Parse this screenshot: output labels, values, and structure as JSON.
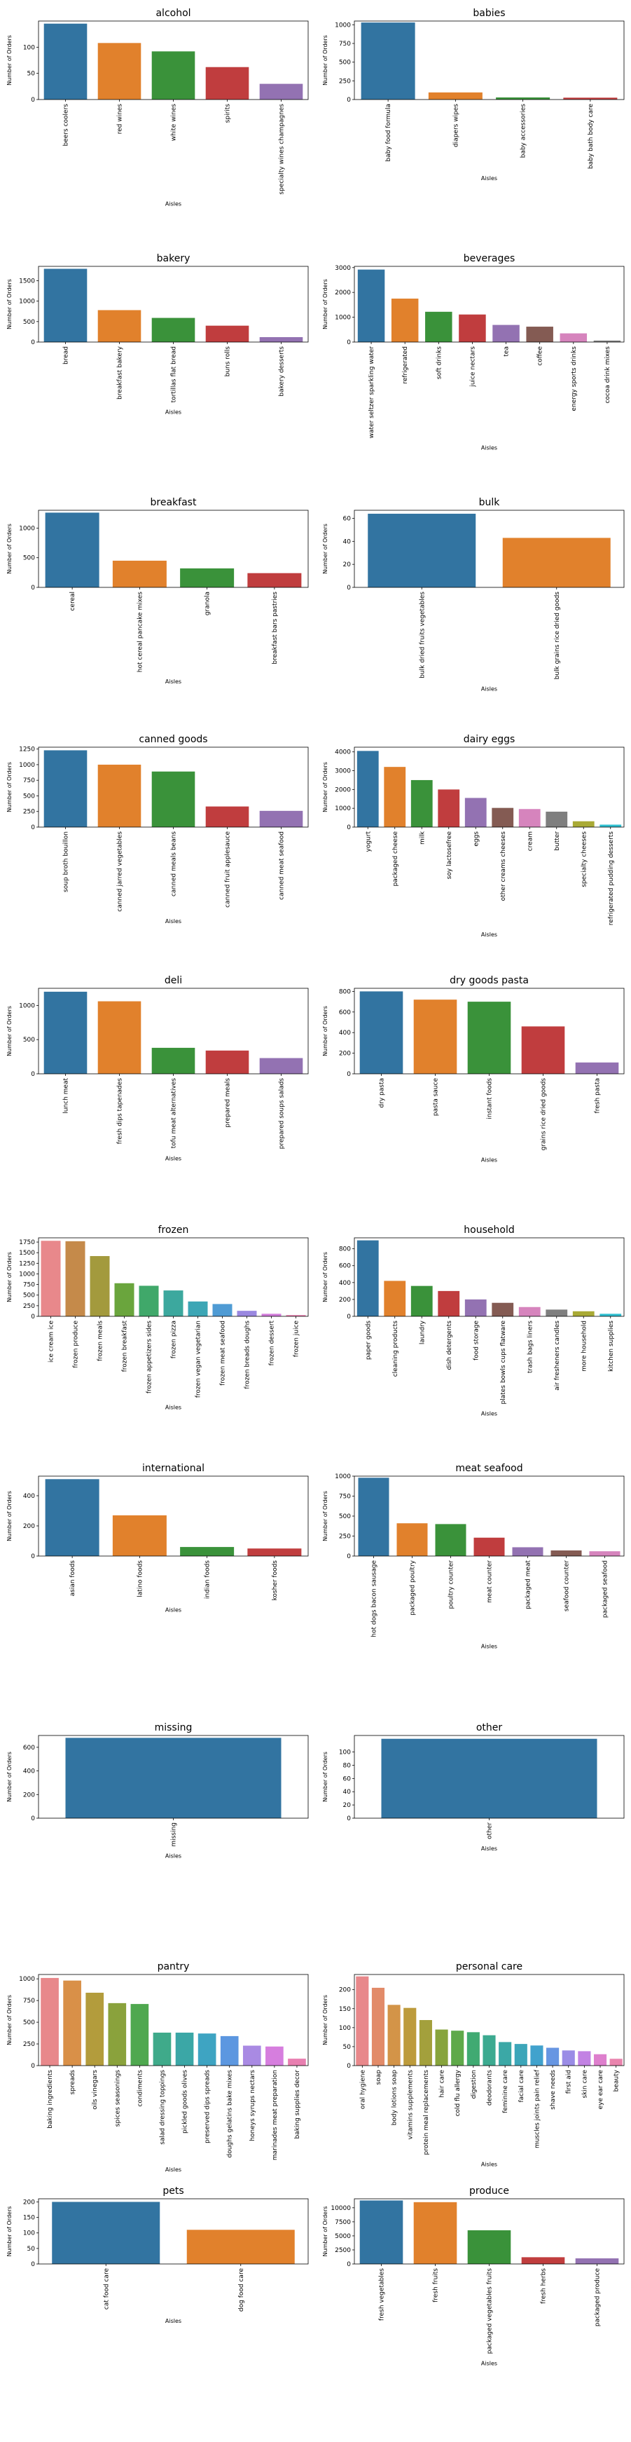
{
  "chart_data": [
    {
      "type": "bar",
      "title": "alcohol",
      "xlabel": "Aisles",
      "ylabel": "Number of Orders",
      "ylim": [
        0,
        150
      ],
      "yticks": [
        0,
        50,
        100
      ],
      "categories": [
        "beers coolers",
        "red wines",
        "white wines",
        "spirits",
        "specialty wines champagnes"
      ],
      "values": [
        145,
        108,
        92,
        62,
        30
      ],
      "colors": [
        "#3274a1",
        "#e1812c",
        "#3a923a",
        "#c03d3e",
        "#9372b2"
      ]
    },
    {
      "type": "bar",
      "title": "babies",
      "xlabel": "Aisles",
      "ylabel": "Number of Orders",
      "ylim": [
        0,
        1050
      ],
      "yticks": [
        0,
        250,
        500,
        750,
        1000
      ],
      "categories": [
        "baby food formula",
        "diapers wipes",
        "baby accessories",
        "baby bath body care"
      ],
      "values": [
        1030,
        95,
        28,
        25
      ],
      "colors": [
        "#3274a1",
        "#e1812c",
        "#3a923a",
        "#c03d3e"
      ]
    },
    {
      "type": "bar",
      "title": "bakery",
      "xlabel": "Aisles",
      "ylabel": "Number of Orders",
      "ylim": [
        0,
        1850
      ],
      "yticks": [
        0,
        500,
        1000,
        1500
      ],
      "categories": [
        "bread",
        "breakfast bakery",
        "tortillas flat bread",
        "buns rolls",
        "bakery desserts"
      ],
      "values": [
        1790,
        780,
        590,
        400,
        120
      ],
      "colors": [
        "#3274a1",
        "#e1812c",
        "#3a923a",
        "#c03d3e",
        "#9372b2"
      ]
    },
    {
      "type": "bar",
      "title": "beverages",
      "xlabel": "Aisles",
      "ylabel": "Number of Orders",
      "ylim": [
        0,
        3050
      ],
      "yticks": [
        0,
        1000,
        2000,
        3000
      ],
      "categories": [
        "water seltzer sparkling water",
        "refrigerated",
        "soft drinks",
        "juice nectars",
        "tea",
        "coffee",
        "energy sports drinks",
        "cocoa drink mixes"
      ],
      "values": [
        2920,
        1750,
        1220,
        1110,
        690,
        620,
        350,
        60
      ],
      "colors": [
        "#3274a1",
        "#e1812c",
        "#3a923a",
        "#c03d3e",
        "#9372b2",
        "#845b53",
        "#d684bd",
        "#7f7f7f"
      ]
    },
    {
      "type": "bar",
      "title": "breakfast",
      "xlabel": "Aisles",
      "ylabel": "Number of Orders",
      "ylim": [
        0,
        1300
      ],
      "yticks": [
        0,
        500,
        1000
      ],
      "categories": [
        "cereal",
        "hot cereal pancake mixes",
        "granola",
        "breakfast bars pastries"
      ],
      "values": [
        1260,
        450,
        320,
        240
      ],
      "colors": [
        "#3274a1",
        "#e1812c",
        "#3a923a",
        "#c03d3e"
      ]
    },
    {
      "type": "bar",
      "title": "bulk",
      "xlabel": "Aisles",
      "ylabel": "Number of Orders",
      "ylim": [
        0,
        67
      ],
      "yticks": [
        0,
        20,
        40,
        60
      ],
      "categories": [
        "bulk dried fruits vegetables",
        "bulk grains rice dried goods"
      ],
      "values": [
        64,
        43
      ],
      "colors": [
        "#3274a1",
        "#e1812c"
      ]
    },
    {
      "type": "bar",
      "title": "canned goods",
      "xlabel": "Aisles",
      "ylabel": "Number of Orders",
      "ylim": [
        0,
        1280
      ],
      "yticks": [
        0,
        250,
        500,
        750,
        1000,
        1250
      ],
      "categories": [
        "soup broth bouillon",
        "canned jarred vegetables",
        "canned meals beans",
        "canned fruit applesauce",
        "canned meat seafood"
      ],
      "values": [
        1230,
        1000,
        890,
        330,
        260
      ],
      "colors": [
        "#3274a1",
        "#e1812c",
        "#3a923a",
        "#c03d3e",
        "#9372b2"
      ]
    },
    {
      "type": "bar",
      "title": "dairy eggs",
      "xlabel": "Aisles",
      "ylabel": "Number of Orders",
      "ylim": [
        0,
        4250
      ],
      "yticks": [
        0,
        1000,
        2000,
        3000,
        4000
      ],
      "categories": [
        "yogurt",
        "packaged cheese",
        "milk",
        "soy lactosefree",
        "eggs",
        "other creams cheeses",
        "cream",
        "butter",
        "specialty cheeses",
        "refrigerated pudding desserts"
      ],
      "values": [
        4050,
        3200,
        2500,
        2000,
        1550,
        1020,
        960,
        820,
        310,
        130
      ],
      "colors": [
        "#3274a1",
        "#e1812c",
        "#3a923a",
        "#c03d3e",
        "#9372b2",
        "#845b53",
        "#d684bd",
        "#7f7f7f",
        "#a9aa35",
        "#2fbfd0"
      ]
    },
    {
      "type": "bar",
      "title": "deli",
      "xlabel": "Aisles",
      "ylabel": "Number of Orders",
      "ylim": [
        0,
        1250
      ],
      "yticks": [
        0,
        500,
        1000
      ],
      "categories": [
        "lunch meat",
        "fresh dips tapenades",
        "tofu meat alternatives",
        "prepared meals",
        "prepared soups salads"
      ],
      "values": [
        1200,
        1060,
        380,
        340,
        230
      ],
      "colors": [
        "#3274a1",
        "#e1812c",
        "#3a923a",
        "#c03d3e",
        "#9372b2"
      ]
    },
    {
      "type": "bar",
      "title": "dry goods pasta",
      "xlabel": "Aisles",
      "ylabel": "Number of Orders",
      "ylim": [
        0,
        830
      ],
      "yticks": [
        0,
        200,
        400,
        600,
        800
      ],
      "categories": [
        "dry pasta",
        "pasta sauce",
        "instant foods",
        "grains rice dried goods",
        "fresh pasta"
      ],
      "values": [
        800,
        720,
        700,
        460,
        110
      ],
      "colors": [
        "#3274a1",
        "#e1812c",
        "#3a923a",
        "#c03d3e",
        "#9372b2"
      ]
    },
    {
      "type": "bar",
      "title": "frozen",
      "xlabel": "Aisles",
      "ylabel": "Number of Orders",
      "ylim": [
        0,
        1850
      ],
      "yticks": [
        0,
        250,
        500,
        750,
        1000,
        1250,
        1500,
        1750
      ],
      "categories": [
        "ice cream ice",
        "frozen produce",
        "frozen meals",
        "frozen breakfast",
        "frozen appetizers sides",
        "frozen pizza",
        "frozen vegan vegetarian",
        "frozen meat seafood",
        "frozen breads doughs",
        "frozen dessert",
        "frozen juice"
      ],
      "values": [
        1780,
        1770,
        1420,
        780,
        720,
        610,
        350,
        290,
        130,
        60,
        30
      ],
      "colors": [
        "#e8888b",
        "#c58a4a",
        "#a39a3d",
        "#6aa53d",
        "#40a86a",
        "#3ca89e",
        "#3ca6b5",
        "#4f9bd4",
        "#9a88e0",
        "#d37ddb",
        "#e97eae"
      ]
    },
    {
      "type": "bar",
      "title": "household",
      "xlabel": "Aisles",
      "ylabel": "Number of Orders",
      "ylim": [
        0,
        930
      ],
      "yticks": [
        0,
        200,
        400,
        600,
        800
      ],
      "categories": [
        "paper goods",
        "cleaning products",
        "laundry",
        "dish detergents",
        "food storage",
        "plates bowls cups flatware",
        "trash bags liners",
        "air fresheners candles",
        "more household",
        "kitchen supplies"
      ],
      "values": [
        900,
        420,
        360,
        300,
        200,
        160,
        110,
        80,
        60,
        30
      ],
      "colors": [
        "#3274a1",
        "#e1812c",
        "#3a923a",
        "#c03d3e",
        "#9372b2",
        "#845b53",
        "#d684bd",
        "#7f7f7f",
        "#a9aa35",
        "#2fbfd0"
      ]
    },
    {
      "type": "bar",
      "title": "international",
      "xlabel": "Aisles",
      "ylabel": "Number of Orders",
      "ylim": [
        0,
        530
      ],
      "yticks": [
        0,
        200,
        400
      ],
      "categories": [
        "asian foods",
        "latino foods",
        "indian foods",
        "kosher foods"
      ],
      "values": [
        510,
        270,
        60,
        50
      ],
      "colors": [
        "#3274a1",
        "#e1812c",
        "#3a923a",
        "#c03d3e"
      ]
    },
    {
      "type": "bar",
      "title": "meat seafood",
      "xlabel": "Aisles",
      "ylabel": "Number of Orders",
      "ylim": [
        0,
        1000
      ],
      "yticks": [
        0,
        250,
        500,
        750,
        1000
      ],
      "categories": [
        "hot dogs bacon sausage",
        "packaged poultry",
        "poultry counter",
        "meat counter",
        "packaged meat",
        "seafood counter",
        "packaged seafood"
      ],
      "values": [
        980,
        410,
        400,
        230,
        110,
        70,
        60
      ],
      "colors": [
        "#3274a1",
        "#e1812c",
        "#3a923a",
        "#c03d3e",
        "#9372b2",
        "#845b53",
        "#d684bd"
      ]
    },
    {
      "type": "bar",
      "title": "missing",
      "xlabel": "Aisles",
      "ylabel": "Number of Orders",
      "ylim": [
        0,
        700
      ],
      "yticks": [
        0,
        200,
        400,
        600
      ],
      "categories": [
        "missing"
      ],
      "values": [
        680
      ],
      "colors": [
        "#3274a1"
      ]
    },
    {
      "type": "bar",
      "title": "other",
      "xlabel": "Aisles",
      "ylabel": "Number of Orders",
      "ylim": [
        0,
        125
      ],
      "yticks": [
        0,
        20,
        40,
        60,
        80,
        100
      ],
      "categories": [
        "other"
      ],
      "values": [
        120
      ],
      "colors": [
        "#3274a1"
      ]
    },
    {
      "type": "bar",
      "title": "pantry",
      "xlabel": "Aisles",
      "ylabel": "Number of Orders",
      "ylim": [
        0,
        1050
      ],
      "yticks": [
        0,
        250,
        500,
        750,
        1000
      ],
      "categories": [
        "baking ingredients",
        "spreads",
        "oils vinegars",
        "spices seasonings",
        "condiments",
        "salad dressing toppings",
        "pickled goods olives",
        "preserved dips spreads",
        "doughs gelatins bake mixes",
        "honeys syrups nectars",
        "marinades meat preparation",
        "baking supplies decor"
      ],
      "values": [
        1010,
        980,
        840,
        720,
        710,
        380,
        380,
        370,
        340,
        230,
        220,
        80
      ],
      "colors": [
        "#e8888b",
        "#d99048",
        "#b39c3c",
        "#8aa23c",
        "#4fa84f",
        "#3faa8a",
        "#3ba7a6",
        "#3ea4c2",
        "#5c97e0",
        "#a98ae3",
        "#d67ede",
        "#e87fb0"
      ]
    },
    {
      "type": "bar",
      "title": "personal care",
      "xlabel": "Aisles",
      "ylabel": "Number of Orders",
      "ylim": [
        0,
        240
      ],
      "yticks": [
        0,
        50,
        100,
        150,
        200
      ],
      "categories": [
        "oral hygiene",
        "soap",
        "body lotions soap",
        "vitamins supplements",
        "protein meal replacements",
        "hair care",
        "cold flu allergy",
        "digestion",
        "deodorants",
        "feminine care",
        "facial care",
        "muscles joints pain relief",
        "shave needs",
        "first aid",
        "skin care",
        "eye ear care",
        "beauty"
      ],
      "values": [
        235,
        205,
        160,
        152,
        120,
        95,
        92,
        88,
        80,
        62,
        57,
        53,
        47,
        40,
        38,
        30,
        18
      ],
      "colors": [
        "#e8888b",
        "#e28b69",
        "#d39448",
        "#bd9b3c",
        "#a3a03c",
        "#87a43c",
        "#5fa94a",
        "#40aa72",
        "#3caa90",
        "#3ba8a6",
        "#3ca6b9",
        "#41a2cd",
        "#6796e2",
        "#9a8ce6",
        "#c282e3",
        "#de7fcd",
        "#e984ad"
      ]
    },
    {
      "type": "bar",
      "title": "pets",
      "xlabel": "Aisles",
      "ylabel": "Number of Orders",
      "ylim": [
        0,
        210
      ],
      "yticks": [
        0,
        50,
        100,
        150,
        200
      ],
      "categories": [
        "cat food care",
        "dog food care"
      ],
      "values": [
        200,
        110
      ],
      "colors": [
        "#3274a1",
        "#e1812c"
      ]
    },
    {
      "type": "bar",
      "title": "produce",
      "xlabel": "Aisles",
      "ylabel": "Number of Orders",
      "ylim": [
        0,
        11600
      ],
      "yticks": [
        0,
        2500,
        5000,
        7500,
        10000
      ],
      "categories": [
        "fresh vegetables",
        "fresh fruits",
        "packaged vegetables fruits",
        "fresh herbs",
        "packaged produce"
      ],
      "values": [
        11300,
        11000,
        6000,
        1200,
        1000
      ],
      "colors": [
        "#3274a1",
        "#e1812c",
        "#3a923a",
        "#c03d3e",
        "#9372b2"
      ]
    }
  ]
}
